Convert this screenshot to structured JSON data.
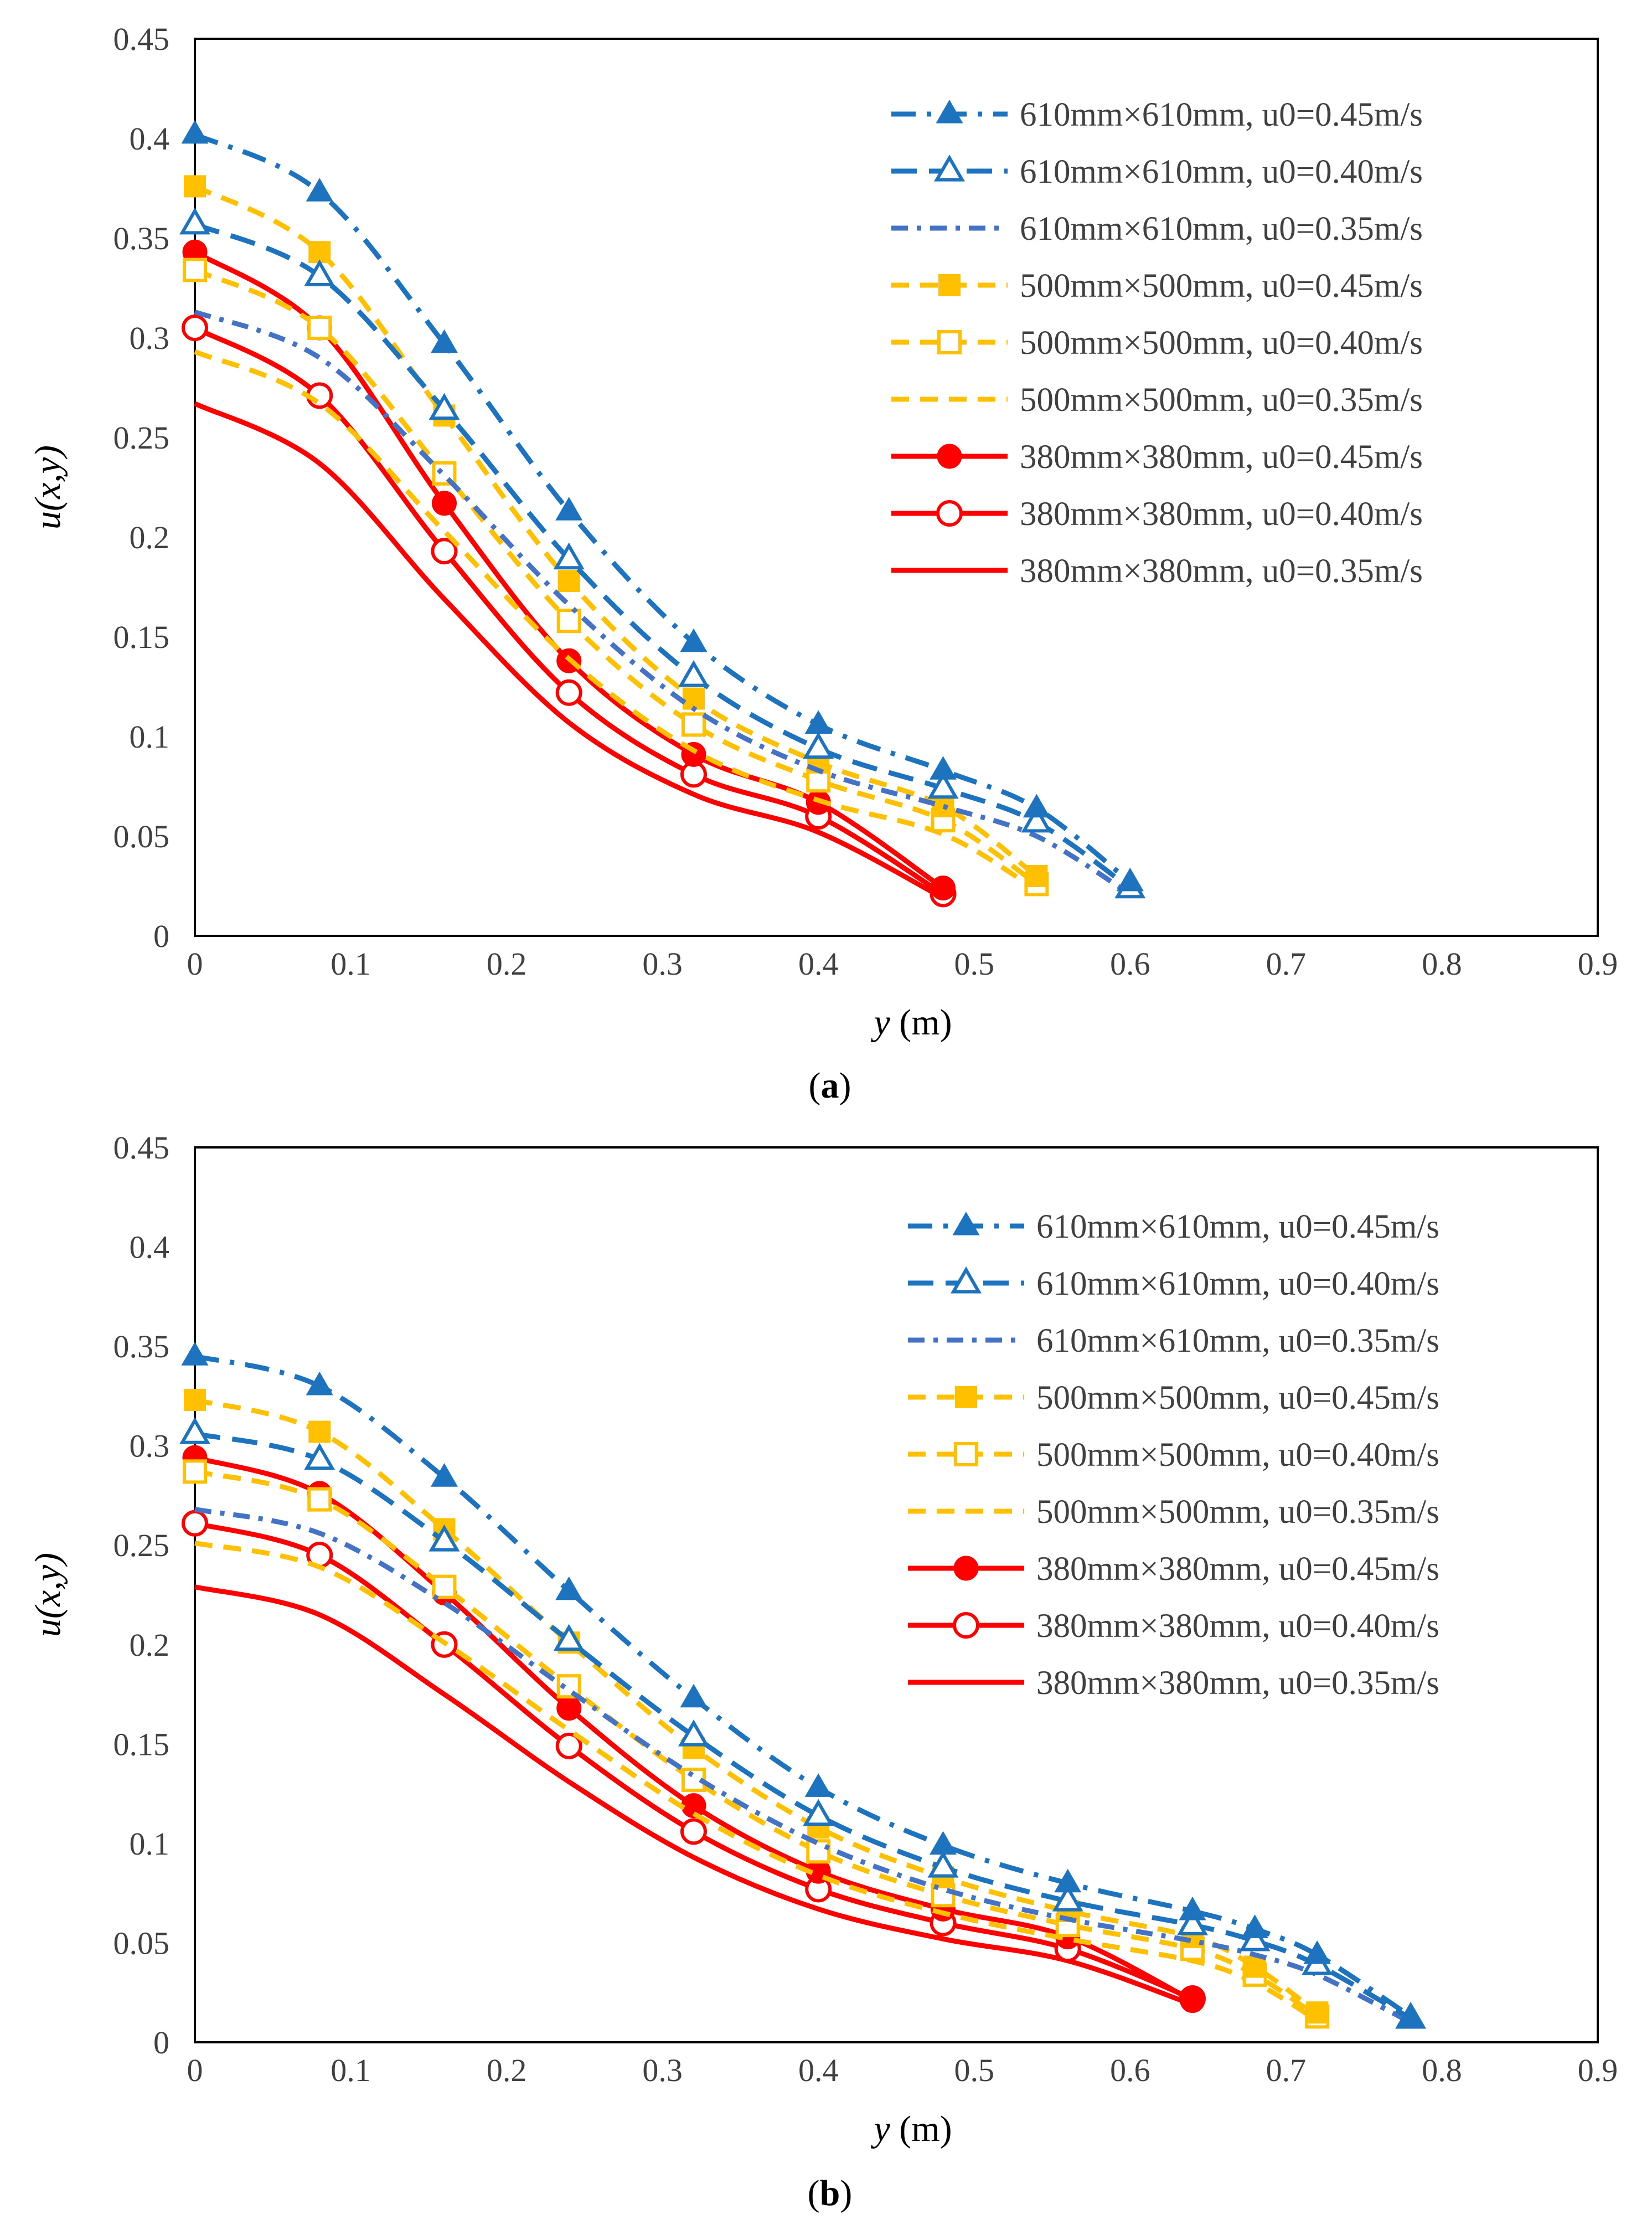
{
  "colors": {
    "blue": "#1e73be",
    "blue_light": "#4472c4",
    "gold": "#ffc000",
    "red": "#ff0000"
  },
  "legend_labels": [
    "610mm×610mm, u0=0.45m/s",
    "610mm×610mm, u0=0.40m/s",
    "610mm×610mm, u0=0.35m/s",
    "500mm×500mm, u0=0.45m/s",
    "500mm×500mm, u0=0.40m/s",
    "500mm×500mm, u0=0.35m/s",
    "380mm×380mm, u0=0.45m/s",
    "380mm×380mm, u0=0.40m/s",
    "380mm×380mm, u0=0.35m/s"
  ],
  "chart_data": [
    {
      "type": "line",
      "panel": "(a)",
      "panel_letter": "a",
      "xlabel": "y (m)",
      "xlabel_var": "y",
      "xlabel_unit": " (m)",
      "ylabel": "u(x,y)",
      "ylabel_var": "u",
      "ylabel_args": "(x,y)",
      "xlim": [
        0,
        0.9
      ],
      "ylim": [
        0,
        0.45
      ],
      "xticks": [
        "0",
        "0.1",
        "0.2",
        "0.3",
        "0.4",
        "0.5",
        "0.6",
        "0.7",
        "0.8",
        "0.9"
      ],
      "yticks": [
        "0",
        "0.05",
        "0.1",
        "0.15",
        "0.2",
        "0.25",
        "0.3",
        "0.35",
        "0.4",
        "0.45"
      ],
      "legend_position": "top-right",
      "series": [
        {
          "name": "610mm×610mm, u0=0.45m/s",
          "color": "#1e73be",
          "dash": "long-dash-dot",
          "marker": "triangle-filled",
          "x": [
            0,
            0.08,
            0.16,
            0.24,
            0.32,
            0.4,
            0.48,
            0.54,
            0.6
          ],
          "y": [
            0.402,
            0.373,
            0.297,
            0.213,
            0.147,
            0.106,
            0.083,
            0.064,
            0.027
          ]
        },
        {
          "name": "610mm×610mm, u0=0.40m/s",
          "color": "#1e73be",
          "dash": "long-dash",
          "marker": "triangle-open",
          "x": [
            0,
            0.08,
            0.16,
            0.24,
            0.32,
            0.4,
            0.48,
            0.54,
            0.6
          ],
          "y": [
            0.357,
            0.331,
            0.264,
            0.189,
            0.13,
            0.094,
            0.074,
            0.057,
            0.024
          ]
        },
        {
          "name": "610mm×610mm, u0=0.35m/s",
          "color": "#4472c4",
          "dash": "dash-dot",
          "marker": "none",
          "x": [
            0,
            0.08,
            0.16,
            0.24,
            0.32,
            0.4,
            0.48,
            0.54,
            0.6
          ],
          "y": [
            0.313,
            0.29,
            0.231,
            0.166,
            0.114,
            0.083,
            0.065,
            0.05,
            0.021
          ]
        },
        {
          "name": "500mm×500mm, u0=0.45m/s",
          "color": "#ffc000",
          "dash": "dash",
          "marker": "square-filled",
          "x": [
            0,
            0.08,
            0.16,
            0.24,
            0.32,
            0.4,
            0.48,
            0.54
          ],
          "y": [
            0.376,
            0.343,
            0.261,
            0.178,
            0.119,
            0.087,
            0.065,
            0.03
          ]
        },
        {
          "name": "500mm×500mm, u0=0.40m/s",
          "color": "#ffc000",
          "dash": "dash",
          "marker": "square-open",
          "x": [
            0,
            0.08,
            0.16,
            0.24,
            0.32,
            0.4,
            0.48,
            0.54
          ],
          "y": [
            0.334,
            0.305,
            0.232,
            0.158,
            0.106,
            0.078,
            0.058,
            0.026
          ]
        },
        {
          "name": "500mm×500mm, u0=0.35m/s",
          "color": "#ffc000",
          "dash": "dash",
          "marker": "none",
          "x": [
            0,
            0.08,
            0.16,
            0.24,
            0.32,
            0.4,
            0.48,
            0.54
          ],
          "y": [
            0.293,
            0.267,
            0.203,
            0.139,
            0.093,
            0.068,
            0.051,
            0.023
          ]
        },
        {
          "name": "380mm×380mm, u0=0.45m/s",
          "color": "#ff0000",
          "dash": "solid",
          "marker": "circle-filled",
          "x": [
            0,
            0.08,
            0.16,
            0.24,
            0.32,
            0.4,
            0.48
          ],
          "y": [
            0.343,
            0.305,
            0.217,
            0.138,
            0.091,
            0.067,
            0.024
          ]
        },
        {
          "name": "380mm×380mm, u0=0.40m/s",
          "color": "#ff0000",
          "dash": "solid",
          "marker": "circle-open",
          "x": [
            0,
            0.08,
            0.16,
            0.24,
            0.32,
            0.4,
            0.48
          ],
          "y": [
            0.305,
            0.271,
            0.193,
            0.122,
            0.081,
            0.06,
            0.021
          ]
        },
        {
          "name": "380mm×380mm, u0=0.35m/s",
          "color": "#ff0000",
          "dash": "solid",
          "marker": "none",
          "x": [
            0,
            0.08,
            0.16,
            0.24,
            0.32,
            0.4,
            0.48
          ],
          "y": [
            0.267,
            0.237,
            0.169,
            0.107,
            0.071,
            0.052,
            0.019
          ]
        }
      ]
    },
    {
      "type": "line",
      "panel": "(b)",
      "panel_letter": "b",
      "xlabel": "y (m)",
      "xlabel_var": "y",
      "xlabel_unit": " (m)",
      "ylabel": "u(x,y)",
      "ylabel_var": "u",
      "ylabel_args": "(x,y)",
      "xlim": [
        0,
        0.9
      ],
      "ylim": [
        0,
        0.45
      ],
      "xticks": [
        "0",
        "0.1",
        "0.2",
        "0.3",
        "0.4",
        "0.5",
        "0.6",
        "0.7",
        "0.8",
        "0.9"
      ],
      "yticks": [
        "0",
        "0.05",
        "0.1",
        "0.15",
        "0.2",
        "0.25",
        "0.3",
        "0.35",
        "0.4",
        "0.45"
      ],
      "legend_position": "top-right",
      "series": [
        {
          "name": "610mm×610mm, u0=0.45m/s",
          "color": "#1e73be",
          "dash": "long-dash-dot",
          "marker": "triangle-filled",
          "x": [
            0,
            0.08,
            0.16,
            0.24,
            0.32,
            0.4,
            0.48,
            0.56,
            0.64,
            0.68,
            0.72,
            0.78
          ],
          "y": [
            0.345,
            0.33,
            0.284,
            0.227,
            0.173,
            0.128,
            0.099,
            0.08,
            0.066,
            0.057,
            0.044,
            0.013
          ]
        },
        {
          "name": "610mm×610mm, u0=0.40m/s",
          "color": "#1e73be",
          "dash": "long-dash",
          "marker": "triangle-open",
          "x": [
            0,
            0.08,
            0.16,
            0.24,
            0.32,
            0.4,
            0.48,
            0.56,
            0.64,
            0.68,
            0.72,
            0.78
          ],
          "y": [
            0.306,
            0.293,
            0.252,
            0.202,
            0.154,
            0.114,
            0.088,
            0.071,
            0.059,
            0.051,
            0.039,
            0.012
          ]
        },
        {
          "name": "610mm×610mm, u0=0.35m/s",
          "color": "#4472c4",
          "dash": "dash-dot",
          "marker": "none",
          "x": [
            0,
            0.08,
            0.16,
            0.24,
            0.32,
            0.4,
            0.48,
            0.56,
            0.64,
            0.68,
            0.72,
            0.78
          ],
          "y": [
            0.268,
            0.256,
            0.221,
            0.177,
            0.134,
            0.1,
            0.077,
            0.062,
            0.051,
            0.044,
            0.034,
            0.01
          ]
        },
        {
          "name": "500mm×500mm, u0=0.45m/s",
          "color": "#ffc000",
          "dash": "dash",
          "marker": "square-filled",
          "x": [
            0,
            0.08,
            0.16,
            0.24,
            0.32,
            0.4,
            0.48,
            0.56,
            0.64,
            0.68,
            0.72
          ],
          "y": [
            0.323,
            0.307,
            0.258,
            0.201,
            0.148,
            0.108,
            0.083,
            0.066,
            0.053,
            0.038,
            0.015
          ]
        },
        {
          "name": "500mm×500mm, u0=0.40m/s",
          "color": "#ffc000",
          "dash": "dash",
          "marker": "square-open",
          "x": [
            0,
            0.08,
            0.16,
            0.24,
            0.32,
            0.4,
            0.48,
            0.56,
            0.64,
            0.68,
            0.72
          ],
          "y": [
            0.287,
            0.273,
            0.229,
            0.179,
            0.132,
            0.096,
            0.074,
            0.059,
            0.047,
            0.034,
            0.013
          ]
        },
        {
          "name": "500mm×500mm, u0=0.35m/s",
          "color": "#ffc000",
          "dash": "dash",
          "marker": "none",
          "x": [
            0,
            0.08,
            0.16,
            0.24,
            0.32,
            0.4,
            0.48,
            0.56,
            0.64,
            0.68,
            0.72
          ],
          "y": [
            0.251,
            0.239,
            0.201,
            0.157,
            0.115,
            0.084,
            0.065,
            0.052,
            0.041,
            0.03,
            0.011
          ]
        },
        {
          "name": "380mm×380mm, u0=0.45m/s",
          "color": "#ff0000",
          "dash": "solid",
          "marker": "circle-filled",
          "x": [
            0,
            0.08,
            0.16,
            0.24,
            0.32,
            0.4,
            0.48,
            0.56,
            0.64
          ],
          "y": [
            0.294,
            0.276,
            0.226,
            0.168,
            0.119,
            0.086,
            0.067,
            0.053,
            0.021
          ]
        },
        {
          "name": "380mm×380mm, u0=0.40m/s",
          "color": "#ff0000",
          "dash": "solid",
          "marker": "circle-open",
          "x": [
            0,
            0.08,
            0.16,
            0.24,
            0.32,
            0.4,
            0.48,
            0.56,
            0.64
          ],
          "y": [
            0.261,
            0.245,
            0.2,
            0.149,
            0.106,
            0.077,
            0.06,
            0.047,
            0.022
          ]
        },
        {
          "name": "380mm×380mm, u0=0.35m/s",
          "color": "#ff0000",
          "dash": "solid",
          "marker": "none",
          "x": [
            0,
            0.08,
            0.16,
            0.24,
            0.32,
            0.4,
            0.48,
            0.56,
            0.64
          ],
          "y": [
            0.229,
            0.215,
            0.175,
            0.131,
            0.093,
            0.067,
            0.052,
            0.041,
            0.019
          ]
        }
      ]
    }
  ]
}
